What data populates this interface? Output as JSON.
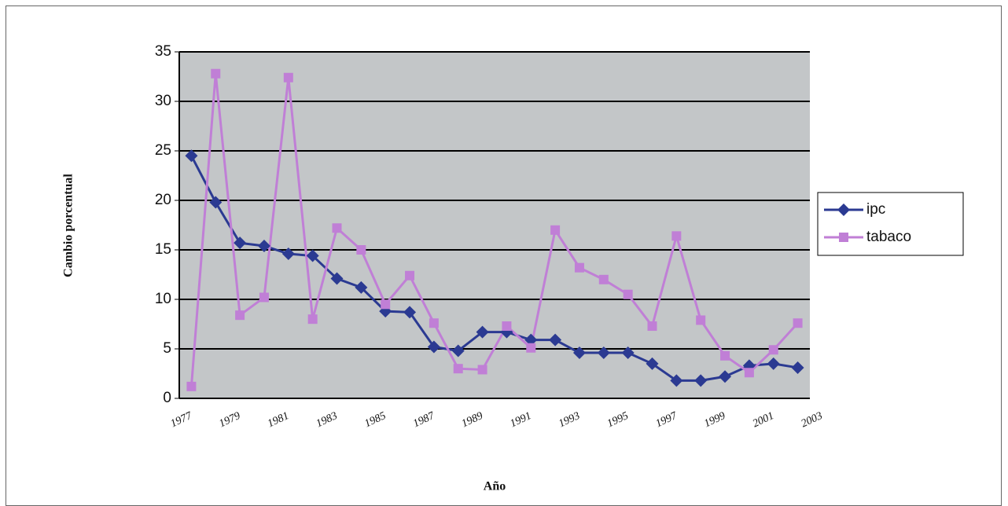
{
  "chart_data": {
    "type": "line",
    "x_label": "Año",
    "y_label": "Cambio porcentual",
    "x": [
      1977,
      1978,
      1979,
      1980,
      1981,
      1982,
      1983,
      1984,
      1985,
      1986,
      1987,
      1988,
      1989,
      1990,
      1991,
      1992,
      1993,
      1994,
      1995,
      1996,
      1997,
      1998,
      1999,
      2000,
      2001,
      2002
    ],
    "series": [
      {
        "name": "ipc",
        "color": "#2b3a92",
        "marker": "diamond",
        "values": [
          24.5,
          19.8,
          15.7,
          15.4,
          14.6,
          14.4,
          12.1,
          11.2,
          8.8,
          8.7,
          5.2,
          4.8,
          6.7,
          6.7,
          5.9,
          5.9,
          4.6,
          4.6,
          4.6,
          3.5,
          1.8,
          1.8,
          2.2,
          3.3,
          3.5,
          3.1
        ]
      },
      {
        "name": "tabaco",
        "color": "#c07fd6",
        "marker": "square",
        "values": [
          1.2,
          32.8,
          8.4,
          10.2,
          32.4,
          8.0,
          17.2,
          15.0,
          9.5,
          12.4,
          7.6,
          3.0,
          2.9,
          7.3,
          5.1,
          17.0,
          13.2,
          12.0,
          10.5,
          7.3,
          16.4,
          7.9,
          4.3,
          2.6,
          4.9,
          7.6
        ]
      }
    ],
    "xlim": [
      1976.5,
      2002.5
    ],
    "xticks": [
      1977,
      1979,
      1981,
      1983,
      1985,
      1987,
      1989,
      1991,
      1993,
      1995,
      1997,
      1999,
      2001,
      2003
    ],
    "ylim": [
      0,
      35
    ],
    "yticks": [
      0,
      5,
      10,
      15,
      20,
      25,
      30,
      35
    ],
    "grid": true,
    "legend": "right"
  }
}
